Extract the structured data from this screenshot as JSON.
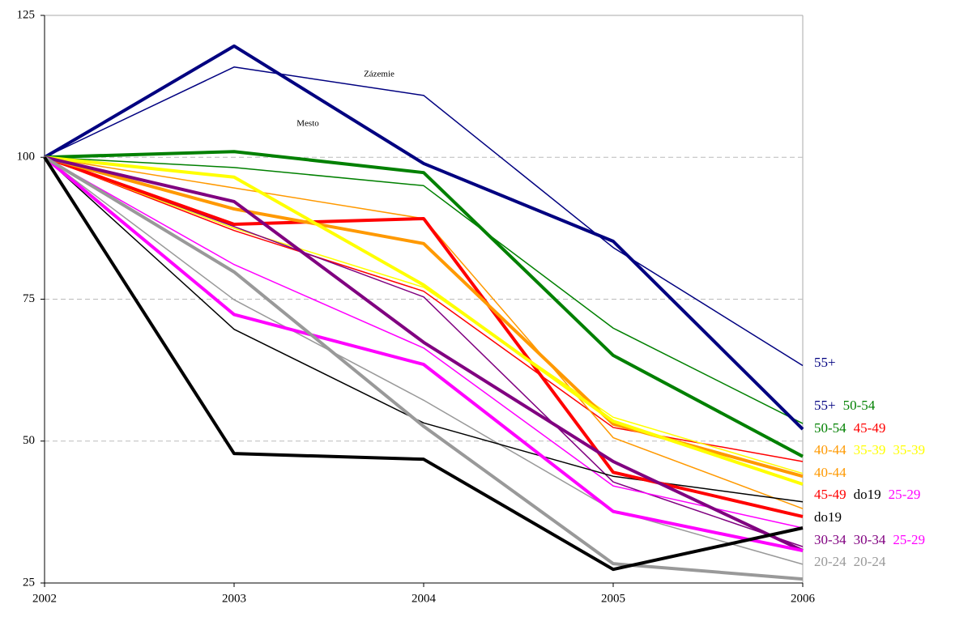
{
  "chart_data": {
    "type": "line",
    "categories": [
      "2002",
      "2003",
      "2004",
      "2005",
      "2006"
    ],
    "ylim": [
      25,
      125
    ],
    "yticks": [
      25,
      50,
      75,
      100,
      125
    ],
    "grid": true,
    "annotations": [
      "Zázemie",
      "Mesto"
    ],
    "series": [
      {
        "name": "55+",
        "color": "#000080",
        "line_width": 4,
        "values": [
          100,
          119.6,
          98.9,
          85.2,
          52.1
        ]
      },
      {
        "name": "55+",
        "color": "#000080",
        "line_width": 1.5,
        "values": [
          100,
          115.9,
          110.9,
          84.1,
          63.3
        ]
      },
      {
        "name": "50-54",
        "color": "#008000",
        "line_width": 4,
        "values": [
          100,
          101.0,
          97.3,
          65.1,
          47.3
        ]
      },
      {
        "name": "50-54",
        "color": "#008000",
        "line_width": 1.5,
        "values": [
          100,
          98.2,
          95.0,
          69.9,
          53.1
        ]
      },
      {
        "name": "45-49",
        "color": "#ff0000",
        "line_width": 4,
        "values": [
          100,
          88.2,
          89.2,
          44.5,
          36.7
        ]
      },
      {
        "name": "45-49",
        "color": "#ff0000",
        "line_width": 1.5,
        "values": [
          100,
          87.1,
          76.4,
          52.4,
          46.4
        ]
      },
      {
        "name": "40-44",
        "color": "#ff9900",
        "line_width": 4,
        "values": [
          100,
          90.9,
          84.8,
          53.0,
          43.8
        ]
      },
      {
        "name": "40-44",
        "color": "#ff9900",
        "line_width": 1.5,
        "values": [
          100,
          94.6,
          89.2,
          50.6,
          38.1
        ]
      },
      {
        "name": "35-39",
        "color": "#ffff00",
        "line_width": 4,
        "values": [
          100,
          96.5,
          77.5,
          53.5,
          42.4
        ]
      },
      {
        "name": "35-39",
        "color": "#ffff00",
        "line_width": 1.5,
        "values": [
          100,
          87.5,
          77.1,
          54.2,
          44.3
        ]
      },
      {
        "name": "30-34",
        "color": "#800080",
        "line_width": 4,
        "values": [
          100,
          92.2,
          67.4,
          46.4,
          30.7
        ]
      },
      {
        "name": "30-34",
        "color": "#800080",
        "line_width": 1.5,
        "values": [
          100,
          87.8,
          75.4,
          42.8,
          31.4
        ]
      },
      {
        "name": "25-29",
        "color": "#ff00ff",
        "line_width": 4,
        "values": [
          100,
          72.3,
          63.5,
          37.6,
          30.7
        ]
      },
      {
        "name": "25-29",
        "color": "#ff00ff",
        "line_width": 1.5,
        "values": [
          100,
          81.1,
          66.4,
          42.1,
          34.7
        ]
      },
      {
        "name": "20-24",
        "color": "#999999",
        "line_width": 4,
        "values": [
          100,
          79.8,
          52.6,
          28.4,
          25.7
        ]
      },
      {
        "name": "20-24",
        "color": "#999999",
        "line_width": 1.5,
        "values": [
          100,
          74.9,
          57.2,
          37.8,
          28.3
        ]
      },
      {
        "name": "do19",
        "color": "#000000",
        "line_width": 4,
        "values": [
          100,
          47.8,
          46.8,
          27.4,
          34.7
        ]
      },
      {
        "name": "do19",
        "color": "#000000",
        "line_width": 1.5,
        "values": [
          100,
          69.7,
          53.2,
          43.8,
          39.3
        ]
      }
    ]
  }
}
